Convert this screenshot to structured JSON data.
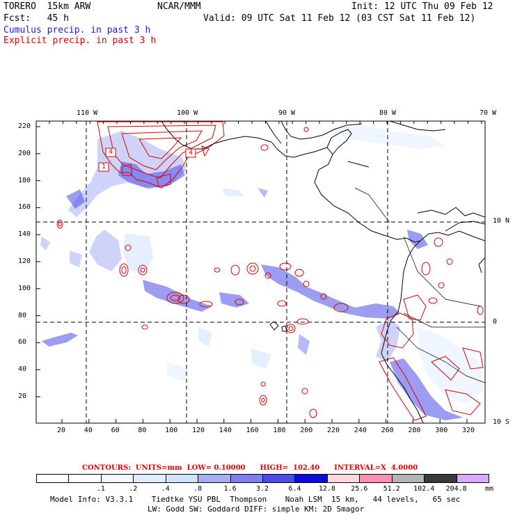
{
  "header": {
    "model": "TORERO  15km ARW",
    "org": "NCAR/MMM",
    "init": "Init: 12 UTC Thu 09 Feb 12",
    "fcst": "Fcst:   45 h",
    "valid": "Valid: 09 UTC Sat 11 Feb 12 (03 CST Sat 11 Feb 12)",
    "cumulus": "Cumulus precip. in past 3 h",
    "explicit": "Explicit precip. in past 3 h"
  },
  "axes": {
    "top_lon_labels": [
      "110 W",
      "100 W",
      "90 W",
      "80 W",
      "70 W"
    ],
    "right_lat_labels": [
      "10 N",
      "0",
      "10 S"
    ],
    "left_y_ticks": [
      "220",
      "200",
      "180",
      "160",
      "140",
      "120",
      "100",
      "80",
      "60",
      "40",
      "20"
    ],
    "bottom_x_ticks": [
      "20",
      "40",
      "60",
      "80",
      "100",
      "120",
      "140",
      "160",
      "180",
      "200",
      "220",
      "240",
      "260",
      "280",
      "300",
      "320"
    ]
  },
  "inset_labels": [
    "4",
    "1",
    "4"
  ],
  "contours": {
    "line": "CONTOURS:  UNITS=mm  LOW= 0.10000      HIGH=  102.40      INTERVAL=X  4.0000"
  },
  "colorbar": {
    "labels": [
      ".1",
      ".2",
      ".4",
      ".8",
      "1.6",
      "3.2",
      "6.4",
      "12.8",
      "25.6",
      "51.2",
      "102.4",
      "204.8"
    ],
    "unit": "mm",
    "colors": [
      "#ffffff",
      "#ffffff",
      "#f2f8ff",
      "#e2eeff",
      "#cfe2ff",
      "#a9aef4",
      "#7e7ef0",
      "#4b4be9",
      "#0c0cdc",
      "#ffd6de",
      "#ff8fb7",
      "#b4b4b4",
      "#3a3a3a",
      "#d8a8ff"
    ]
  },
  "model_info": {
    "line1": "Model Info: V3.3.1    Tiedtke YSU PBL  Thompson    Noah LSM  15 km,   44 levels,   65 sec",
    "line2": "LW: Godd SW: Goddard DIFF: simple KM: 2D Smagor"
  },
  "map": {
    "accent_blue": "#2a2ae8",
    "contour_red": "#e00000",
    "coast": "#000000"
  }
}
